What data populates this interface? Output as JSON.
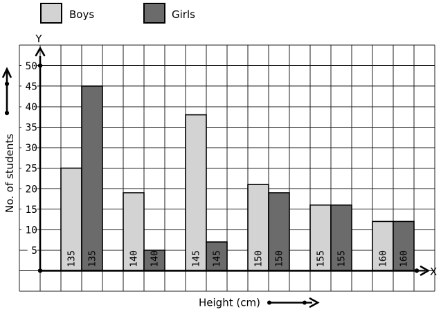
{
  "legend": {
    "items": [
      {
        "label": "Boys",
        "color": "#d3d3d3"
      },
      {
        "label": "Girls",
        "color": "#6b6b6b"
      }
    ]
  },
  "axis_labels": {
    "y_letter": "Y",
    "x_letter": "X",
    "ylabel": "No. of students",
    "xlabel": "Height (cm)"
  },
  "chart_data": {
    "type": "bar",
    "title": "",
    "categories": [
      "135",
      "140",
      "145",
      "150",
      "155",
      "160"
    ],
    "series": [
      {
        "name": "Boys",
        "color": "#d3d3d3",
        "values": [
          25,
          19,
          38,
          21,
          16,
          12
        ]
      },
      {
        "name": "Girls",
        "color": "#6b6b6b",
        "values": [
          45,
          5,
          7,
          19,
          16,
          12
        ]
      }
    ],
    "xlabel": "Height (cm)",
    "ylabel": "No. of students",
    "yticks": [
      5,
      10,
      15,
      20,
      25,
      30,
      35,
      40,
      45,
      50
    ],
    "ylim": [
      0,
      55
    ],
    "grid": true,
    "legend_position": "top-left",
    "bar_labels_inside": "category value rotated 90° at base of each bar",
    "axis_color": "#000000",
    "grid_color": "#1c1c1c"
  }
}
